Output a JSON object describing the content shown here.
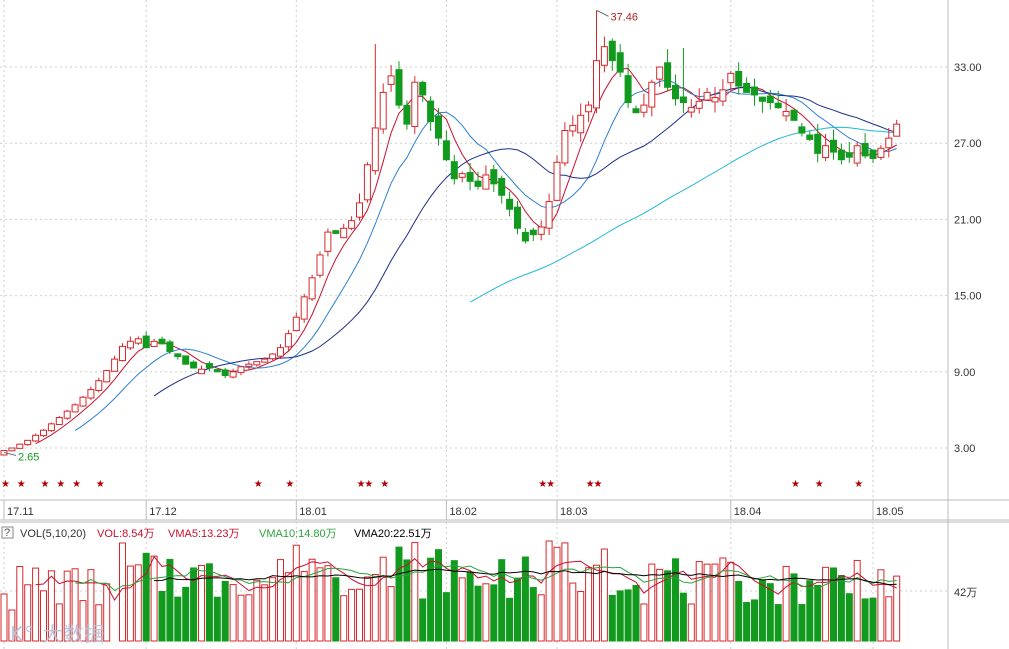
{
  "chart_data": {
    "type": "candlestick",
    "price_axis": {
      "ticks": [
        "33.00",
        "27.00",
        "21.00",
        "15.00",
        "9.00",
        "3.00"
      ],
      "values": [
        33,
        27,
        21,
        15,
        9,
        3
      ],
      "ylim": [
        -1,
        39
      ]
    },
    "x_axis": {
      "labels": [
        {
          "text": "17.11",
          "index": 0
        },
        {
          "text": "17.12",
          "index": 18
        },
        {
          "text": "18.01",
          "index": 37
        },
        {
          "text": "18.02",
          "index": 56
        },
        {
          "text": "18.03",
          "index": 70
        },
        {
          "text": "18.04",
          "index": 92
        },
        {
          "text": "18.05",
          "index": 110
        }
      ]
    },
    "annotations": {
      "high": {
        "text": "37.46",
        "index": 75,
        "value": 37.46
      },
      "low": {
        "text": "2.65",
        "index": 0,
        "value": 2.65
      }
    },
    "stars": [
      0,
      2,
      5,
      7,
      9,
      12,
      32,
      36,
      45,
      46,
      48,
      68,
      69,
      74,
      75,
      100,
      103,
      108
    ],
    "volume_panel": {
      "label": "VOL(5,10,20)",
      "vol": "VOL:8.54万",
      "vma5": "VMA5:13.23万",
      "vma10": "VMA10:14.80万",
      "vma20": "VMA20:22.51万",
      "tick": "42万"
    },
    "colors": {
      "up": "#d6282c",
      "down": "#119a1e",
      "ma5": "#c8102e",
      "ma10": "#2d7fd0",
      "ma20": "#1a2f8a",
      "ma60": "#22b9d6",
      "vma5": "#c8102e",
      "vma10": "#2aa33a",
      "vma20": "#000000"
    },
    "close": [
      2.8,
      3.0,
      3.3,
      3.6,
      4.0,
      4.4,
      4.9,
      5.4,
      5.9,
      6.4,
      7.0,
      7.6,
      8.3,
      9.1,
      10.0,
      11.0,
      11.4,
      11.6,
      10.9,
      11.4,
      11.2,
      10.6,
      10.2,
      9.6,
      9.3,
      9.2,
      9.3,
      9.0,
      8.7,
      9.0,
      9.4,
      9.6,
      9.8,
      10.0,
      10.4,
      10.9,
      12.0,
      13.3,
      14.9,
      16.4,
      18.2,
      20.0,
      19.9,
      20.3,
      20.9,
      22.3,
      25.3,
      28.2,
      31.0,
      32.3,
      30.0,
      28.5,
      31.8,
      30.8,
      28.7,
      27.4,
      25.7,
      24.2,
      24.6,
      24.0,
      23.6,
      24.5,
      23.8,
      22.9,
      21.8,
      20.3,
      19.3,
      19.8,
      20.4,
      22.4,
      25.5,
      28.0,
      28.4,
      29.2,
      30.0,
      33.5,
      34.6,
      33.5,
      32.6,
      30.2,
      29.4,
      30.0,
      31.8,
      33.0,
      31.4,
      30.5,
      30.2,
      29.8,
      30.3,
      31.0,
      30.6,
      31.2,
      32.5,
      31.5,
      31.0,
      30.8,
      30.3,
      30.2,
      29.8,
      29.5,
      28.8,
      27.8,
      27.3,
      26.2,
      26.8,
      26.3,
      25.7,
      25.9,
      26.8,
      26.0,
      25.8,
      26.6,
      27.4,
      28.5
    ]
  }
}
